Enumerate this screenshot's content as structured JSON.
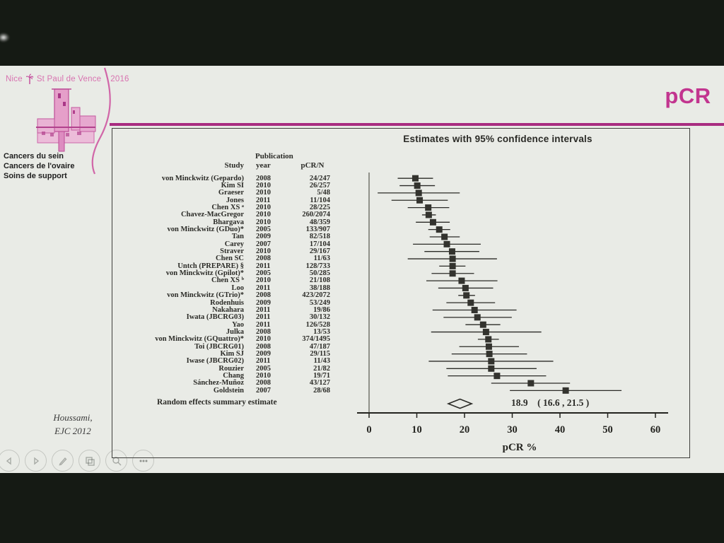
{
  "slide": {
    "header": {
      "title": "pCR",
      "accent_color": "#c2358f",
      "rule_color": "#a82c80"
    },
    "logo": {
      "event_city": "Nice",
      "event_place": "St Paul de Vence",
      "event_year": "2016",
      "topics": [
        "Cancers du sein",
        "Cancers de l'ovaire",
        "Soins de support"
      ],
      "pink": "#d06aa8"
    },
    "citation": {
      "line1": "Houssami,",
      "line2": "EJC 2012"
    }
  },
  "toolbar": {
    "icons": [
      "previous-slide",
      "next-slide",
      "pen",
      "all-slides",
      "zoom",
      "more-options"
    ]
  },
  "chart_data": {
    "type": "forest",
    "title": "Estimates with 95% confidence intervals",
    "columns": {
      "study": "Study",
      "year_top": "Publication",
      "year_bottom": "year",
      "pcr_n": "pCR/N"
    },
    "xlabel": "pCR %",
    "xticks": [
      0,
      10,
      20,
      30,
      40,
      50,
      60
    ],
    "xlim": [
      0,
      63
    ],
    "grid": false,
    "studies": [
      {
        "study": "von Minckwitz (Gepardo)",
        "year": "2008",
        "pcr_n": "24/247",
        "pct": 9.7,
        "lo": 6.0,
        "hi": 13.4
      },
      {
        "study": "Kim SI",
        "year": "2010",
        "pcr_n": "26/257",
        "pct": 10.1,
        "lo": 6.4,
        "hi": 13.8
      },
      {
        "study": "Graeser",
        "year": "2010",
        "pcr_n": "5/48",
        "pct": 10.4,
        "lo": 1.8,
        "hi": 19.0
      },
      {
        "study": "Jones",
        "year": "2011",
        "pcr_n": "11/104",
        "pct": 10.6,
        "lo": 4.7,
        "hi": 16.5
      },
      {
        "study": "Chen XS ᵃ",
        "year": "2010",
        "pcr_n": "28/225",
        "pct": 12.4,
        "lo": 8.1,
        "hi": 16.8
      },
      {
        "study": "Chavez-MacGregor",
        "year": "2010",
        "pcr_n": "260/2074",
        "pct": 12.5,
        "lo": 11.1,
        "hi": 14.0
      },
      {
        "study": "Bhargava",
        "year": "2010",
        "pcr_n": "48/359",
        "pct": 13.4,
        "lo": 9.8,
        "hi": 16.9
      },
      {
        "study": "von Minckwitz (GDuo)*",
        "year": "2005",
        "pcr_n": "133/907",
        "pct": 14.7,
        "lo": 12.4,
        "hi": 17.0
      },
      {
        "study": "Tan",
        "year": "2009",
        "pcr_n": "82/518",
        "pct": 15.8,
        "lo": 12.7,
        "hi": 19.0
      },
      {
        "study": "Carey",
        "year": "2007",
        "pcr_n": "17/104",
        "pct": 16.3,
        "lo": 9.2,
        "hi": 23.4
      },
      {
        "study": "Straver",
        "year": "2010",
        "pcr_n": "29/167",
        "pct": 17.4,
        "lo": 11.6,
        "hi": 23.1
      },
      {
        "study": "Chen SC",
        "year": "2008",
        "pcr_n": "11/63",
        "pct": 17.5,
        "lo": 8.1,
        "hi": 26.8
      },
      {
        "study": "Untch (PREPARE) §",
        "year": "2011",
        "pcr_n": "128/733",
        "pct": 17.5,
        "lo": 14.7,
        "hi": 20.2
      },
      {
        "study": "von Minckwitz (Gpilot)*",
        "year": "2005",
        "pcr_n": "50/285",
        "pct": 17.5,
        "lo": 13.1,
        "hi": 22.0
      },
      {
        "study": "Chen XS ᵇ",
        "year": "2010",
        "pcr_n": "21/108",
        "pct": 19.4,
        "lo": 12.0,
        "hi": 26.9
      },
      {
        "study": "Loo",
        "year": "2011",
        "pcr_n": "38/188",
        "pct": 20.2,
        "lo": 14.5,
        "hi": 26.0
      },
      {
        "study": "von Minckwitz (GTrio)*",
        "year": "2008",
        "pcr_n": "423/2072",
        "pct": 20.4,
        "lo": 18.7,
        "hi": 22.2
      },
      {
        "study": "Rodenhuis",
        "year": "2009",
        "pcr_n": "53/249",
        "pct": 21.3,
        "lo": 16.2,
        "hi": 26.4
      },
      {
        "study": "Nakahara",
        "year": "2011",
        "pcr_n": "19/86",
        "pct": 22.1,
        "lo": 13.3,
        "hi": 30.9
      },
      {
        "study": "Iwata (JBCRG03)",
        "year": "2011",
        "pcr_n": "30/132",
        "pct": 22.7,
        "lo": 15.6,
        "hi": 29.9
      },
      {
        "study": "Yao",
        "year": "2011",
        "pcr_n": "126/528",
        "pct": 23.9,
        "lo": 20.2,
        "hi": 27.5
      },
      {
        "study": "Julka",
        "year": "2008",
        "pcr_n": "13/53",
        "pct": 24.5,
        "lo": 13.0,
        "hi": 36.1
      },
      {
        "study": "von Minckwitz (GQuattro)*",
        "year": "2010",
        "pcr_n": "374/1495",
        "pct": 25.0,
        "lo": 22.8,
        "hi": 27.2
      },
      {
        "study": "Toi (JBCRG01)",
        "year": "2008",
        "pcr_n": "47/187",
        "pct": 25.1,
        "lo": 18.9,
        "hi": 31.4
      },
      {
        "study": "Kim SJ",
        "year": "2009",
        "pcr_n": "29/115",
        "pct": 25.2,
        "lo": 17.3,
        "hi": 33.1
      },
      {
        "study": "Iwase (JBCRG02)",
        "year": "2011",
        "pcr_n": "11/43",
        "pct": 25.6,
        "lo": 12.5,
        "hi": 38.6
      },
      {
        "study": "Rouzier",
        "year": "2005",
        "pcr_n": "21/82",
        "pct": 25.6,
        "lo": 16.2,
        "hi": 35.1
      },
      {
        "study": "Chang",
        "year": "2010",
        "pcr_n": "19/71",
        "pct": 26.8,
        "lo": 16.5,
        "hi": 37.1
      },
      {
        "study": "Sánchez-Muñoz",
        "year": "2008",
        "pcr_n": "43/127",
        "pct": 33.9,
        "lo": 25.6,
        "hi": 42.1
      },
      {
        "study": "Goldstein",
        "year": "2007",
        "pcr_n": "28/68",
        "pct": 41.2,
        "lo": 29.5,
        "hi": 52.9
      }
    ],
    "summary": {
      "label": "Random effects summary estimate",
      "estimate": 18.9,
      "lo": 16.6,
      "hi": 21.5,
      "text": "18.9    ( 16.6 , 21.5 )"
    }
  }
}
